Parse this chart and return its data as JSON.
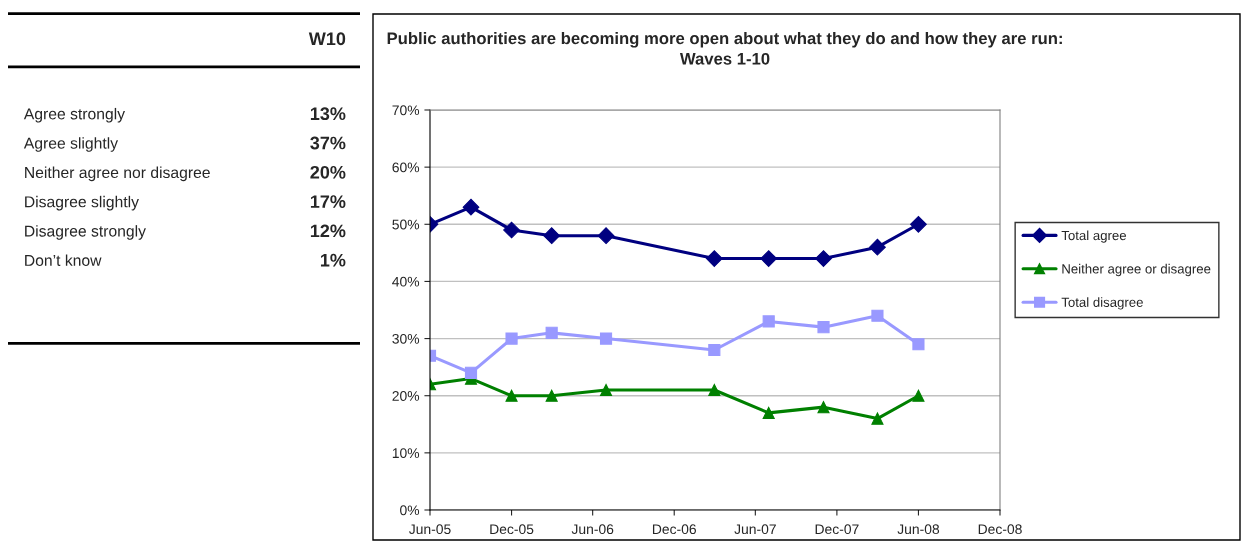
{
  "chart_data": [
    {
      "type": "other",
      "title": "W10",
      "categories": [
        "Agree strongly",
        "Agree slightly",
        "Neither agree nor disagree",
        "Disagree slightly",
        "Disagree strongly",
        "Don’t know"
      ],
      "value_labels": [
        "13%",
        "37%",
        "20%",
        "17%",
        "12%",
        "1%"
      ]
    },
    {
      "type": "line",
      "title": "Public authorities are becoming more open about what they do and how they are run: Waves 1-10",
      "x": [
        "2005-06",
        "2005-09",
        "2005-12",
        "2006-03",
        "2006-07",
        "2007-03",
        "2007-07",
        "2007-11",
        "2008-03",
        "2008-06"
      ],
      "series": [
        {
          "name": "Total agree",
          "color": "#000080",
          "marker": "diamond",
          "values": [
            50,
            53,
            49,
            48,
            48,
            44,
            44,
            44,
            46,
            50
          ]
        },
        {
          "name": "Neither agree or disagree",
          "color": "#008000",
          "marker": "triangle",
          "values": [
            22,
            23,
            20,
            20,
            21,
            21,
            17,
            18,
            16,
            20
          ]
        },
        {
          "name": "Total disagree",
          "color": "#9999ff",
          "marker": "square",
          "values": [
            27,
            24,
            30,
            31,
            30,
            28,
            33,
            32,
            34,
            29
          ]
        }
      ],
      "xlim": [
        "2005-06",
        "2008-12"
      ],
      "xticks": [
        {
          "value": "2005-06",
          "label": "Jun-05"
        },
        {
          "value": "2005-12",
          "label": "Dec-05"
        },
        {
          "value": "2006-06",
          "label": "Jun-06"
        },
        {
          "value": "2006-12",
          "label": "Dec-06"
        },
        {
          "value": "2007-06",
          "label": "Jun-07"
        },
        {
          "value": "2007-12",
          "label": "Dec-07"
        },
        {
          "value": "2008-06",
          "label": "Jun-08"
        },
        {
          "value": "2008-12",
          "label": "Dec-08"
        }
      ],
      "ylim": [
        0,
        70
      ],
      "yticks": [
        {
          "value": 0,
          "label": "0%"
        },
        {
          "value": 10,
          "label": "10%"
        },
        {
          "value": 20,
          "label": "20%"
        },
        {
          "value": 30,
          "label": "30%"
        },
        {
          "value": 40,
          "label": "40%"
        },
        {
          "value": 50,
          "label": "50%"
        },
        {
          "value": 60,
          "label": "60%"
        },
        {
          "value": 70,
          "label": "70%"
        }
      ],
      "grid": "y",
      "legend": "right",
      "line_style": "solid"
    }
  ]
}
